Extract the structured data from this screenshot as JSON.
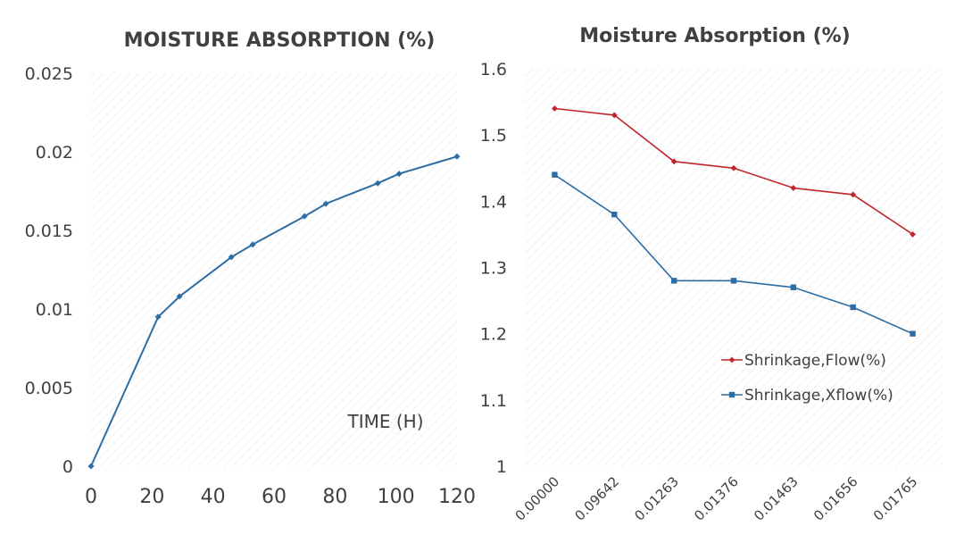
{
  "chart_data": [
    {
      "type": "line",
      "title": "MOISTURE ABSORPTION (%)",
      "xlabel": "",
      "ylabel": "",
      "annotation": "TIME  (H)",
      "xlim": [
        0,
        120
      ],
      "ylim": [
        0,
        0.025
      ],
      "x_ticks": [
        "0",
        "20",
        "40",
        "60",
        "80",
        "100",
        "120"
      ],
      "y_ticks": [
        "0",
        "0.005",
        "0.01",
        "0.015",
        "0.02",
        "0.025"
      ],
      "series": [
        {
          "name": "Moisture Absorption",
          "color": "#2e6da4",
          "x": [
            0,
            22,
            29,
            46,
            53,
            70,
            77,
            94,
            101,
            120
          ],
          "y": [
            0,
            0.0095,
            0.0108,
            0.0133,
            0.0141,
            0.0159,
            0.0167,
            0.018,
            0.0186,
            0.0197
          ]
        }
      ],
      "grid": "hatched background",
      "legend": "none"
    },
    {
      "type": "line",
      "title": "Moisture Absorption (%)",
      "xlabel": "",
      "ylabel": "",
      "categories": [
        "0.00000",
        "0.09642",
        "0.01263",
        "0.01376",
        "0.01463",
        "0.01656",
        "0.01765"
      ],
      "ylim": [
        1,
        1.6
      ],
      "y_ticks": [
        "1",
        "1.1",
        "1.2",
        "1.3",
        "1.4",
        "1.5",
        "1.6"
      ],
      "series": [
        {
          "name": "Shrinkage,Flow(%)",
          "color": "#c0272d",
          "marker": "diamond",
          "values": [
            1.54,
            1.53,
            1.46,
            1.45,
            1.42,
            1.41,
            1.35
          ]
        },
        {
          "name": "Shrinkage,Xflow(%)",
          "color": "#2e6da4",
          "marker": "square",
          "values": [
            1.44,
            1.38,
            1.28,
            1.28,
            1.27,
            1.24,
            1.2
          ]
        }
      ],
      "grid": "hatched background",
      "legend": "inside right"
    }
  ]
}
